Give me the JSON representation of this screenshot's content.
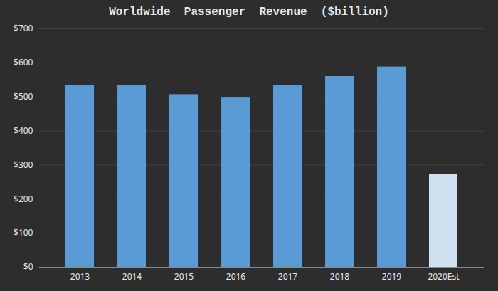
{
  "chart_data": {
    "type": "bar",
    "title": "Worldwide  Passenger  Revenue  ($billion)",
    "categories": [
      "2013",
      "2014",
      "2015",
      "2016",
      "2017",
      "2018",
      "2019",
      "2020Est"
    ],
    "values": [
      535,
      535,
      507,
      497,
      533,
      560,
      588,
      272
    ],
    "colors": [
      "#5b9bd5",
      "#5b9bd5",
      "#5b9bd5",
      "#5b9bd5",
      "#5b9bd5",
      "#5b9bd5",
      "#5b9bd5",
      "#cfe0f0"
    ],
    "ylim": [
      0,
      700
    ],
    "yticks": [
      {
        "value": 0,
        "label": "$0"
      },
      {
        "value": 100,
        "label": "$100"
      },
      {
        "value": 200,
        "label": "$200"
      },
      {
        "value": 300,
        "label": "$300"
      },
      {
        "value": 400,
        "label": "$400"
      },
      {
        "value": 500,
        "label": "$500"
      },
      {
        "value": 600,
        "label": "$600"
      },
      {
        "value": 700,
        "label": "$700"
      }
    ],
    "grid": true
  }
}
